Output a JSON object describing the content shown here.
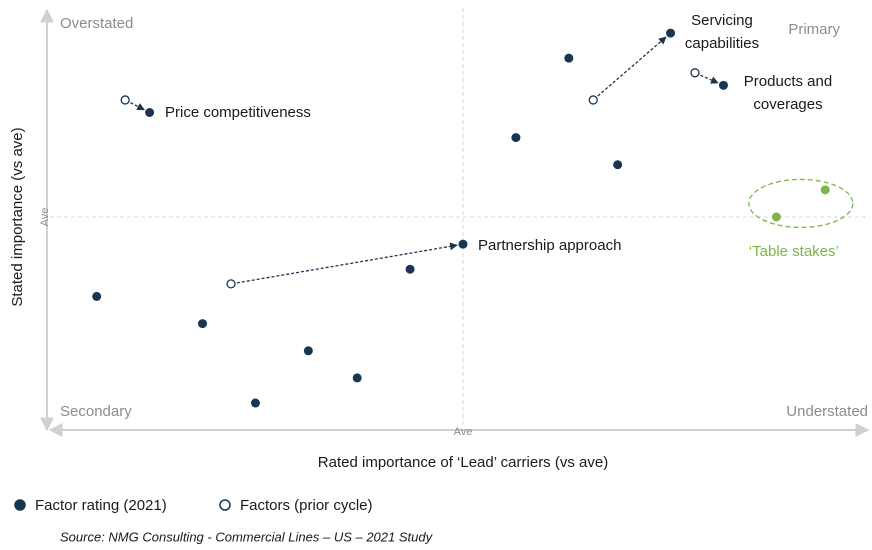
{
  "chart_data": {
    "type": "scatter",
    "x_label": "Rated importance of ‘Lead’ carriers (vs ave)",
    "y_label": "Stated importance (vs ave)",
    "xlim": [
      -10,
      10
    ],
    "ylim": [
      -10,
      10
    ],
    "xticks": [
      {
        "value": 0,
        "label": "Ave"
      }
    ],
    "yticks": [
      {
        "value": 0,
        "label": "Ave"
      }
    ],
    "grid": true,
    "quadrants": {
      "top_left": "Overstated",
      "top_right": "Primary",
      "bottom_left": "Secondary",
      "bottom_right": "Understated"
    },
    "series": [
      {
        "name": "Factor rating (2021)",
        "color": "#1b3550",
        "marker": "filled",
        "x": [
          -7.7,
          5.1,
          6.4,
          0,
          2.6,
          1.3,
          3.8,
          -1.3,
          -9.0,
          -6.4,
          -3.8,
          -2.6,
          -5.1
        ],
        "values": [
          5.0,
          8.8,
          6.3,
          -1.3,
          7.6,
          3.8,
          2.5,
          -2.5,
          -3.8,
          -5.1,
          -6.4,
          -7.7,
          -8.9
        ]
      },
      {
        "name": "Factors (prior cycle)",
        "color": "#1b3550",
        "marker": "hollow",
        "x": [
          -8.3,
          3.2,
          5.7,
          -5.7
        ],
        "values": [
          5.6,
          5.6,
          6.9,
          -3.2
        ]
      },
      {
        "name": "‘Table stakes’",
        "color": "#7ab648",
        "marker": "filled",
        "x": [
          8.9,
          7.7
        ],
        "values": [
          1.3,
          0
        ]
      }
    ],
    "annotations": [
      "Price competitiveness",
      "Servicing capabilities",
      "Products and coverages",
      "Partnership approach"
    ],
    "source": "Source: NMG Consulting - Commercial Lines – US – 2021 Study"
  }
}
